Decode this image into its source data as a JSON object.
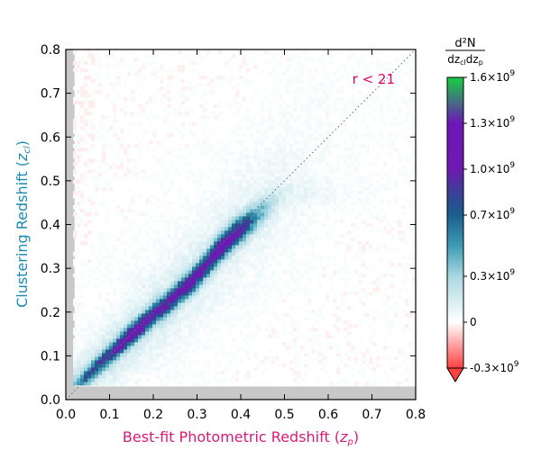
{
  "chart_data": {
    "type": "heatmap",
    "title": "",
    "annotation": "r < 21",
    "xlabel": "Best-fit Photometric Redshift (z_p)",
    "ylabel": "Clustering Redshift (z_cl)",
    "xlabel_parts": {
      "text": "Best-fit Photometric Redshift (",
      "sym": "z",
      "sub": "p",
      "close": ")"
    },
    "ylabel_parts": {
      "text": "Clustering Redshift (",
      "sym": "z",
      "sub": "cl",
      "close": ")"
    },
    "xlim": [
      0.0,
      0.8
    ],
    "ylim": [
      0.0,
      0.8
    ],
    "x_ticks": [
      "0.0",
      "0.1",
      "0.2",
      "0.3",
      "0.4",
      "0.5",
      "0.6",
      "0.7",
      "0.8"
    ],
    "y_ticks": [
      "0.0",
      "0.1",
      "0.2",
      "0.3",
      "0.4",
      "0.5",
      "0.6",
      "0.7",
      "0.8"
    ],
    "x_tick_values": [
      0.0,
      0.1,
      0.2,
      0.3,
      0.4,
      0.5,
      0.6,
      0.7,
      0.8
    ],
    "y_tick_values": [
      0.0,
      0.1,
      0.2,
      0.3,
      0.4,
      0.5,
      0.6,
      0.7,
      0.8
    ],
    "reference_line": {
      "style": "dotted",
      "x": [
        0.0,
        0.8
      ],
      "y": [
        0.0,
        0.8
      ]
    },
    "masked_region_color": "#c8c8c8",
    "masked_regions": [
      {
        "axis": "x",
        "from": 0.0,
        "to": 0.02
      },
      {
        "axis": "y",
        "from": 0.0,
        "to": 0.03
      }
    ],
    "ridge": {
      "x": [
        0.02,
        0.05,
        0.08,
        0.11,
        0.14,
        0.17,
        0.2,
        0.23,
        0.26,
        0.29,
        0.32,
        0.35,
        0.38,
        0.41,
        0.44,
        0.47,
        0.5
      ],
      "y": [
        0.03,
        0.055,
        0.085,
        0.11,
        0.14,
        0.165,
        0.195,
        0.215,
        0.245,
        0.27,
        0.305,
        0.34,
        0.37,
        0.395,
        0.42,
        0.445,
        0.47
      ],
      "peak_density": [
        0.3,
        0.55,
        0.7,
        0.8,
        0.97,
        1.02,
        0.92,
        0.88,
        0.94,
        0.96,
        0.95,
        1.06,
        1.08,
        0.8,
        0.4,
        0.18,
        0.08
      ],
      "unit": "1e9"
    },
    "colorbar": {
      "label": "d²N / dz_cl dz_p",
      "label_num": "d²N",
      "label_den_parts": [
        "dz",
        "cl",
        "dz",
        "p"
      ],
      "range": [
        -300000000.0,
        1600000000.0
      ],
      "extend": "min",
      "ticks": [
        -300000000.0,
        0.0,
        300000000.0,
        700000000.0,
        1000000000.0,
        1300000000.0,
        1600000000.0
      ],
      "tick_labels": [
        "-0.3×10",
        "0",
        "0.3×10",
        "0.7×10",
        "1.0×10",
        "1.3×10",
        "1.6×10"
      ],
      "tick_exponents": [
        "9",
        "",
        "9",
        "9",
        "9",
        "9",
        "9"
      ],
      "stops": [
        {
          "value": -300000000.0,
          "color": "#ff4040"
        },
        {
          "value": 0.0,
          "color": "#ffffff"
        },
        {
          "value": 300000000.0,
          "color": "#a9d7e2"
        },
        {
          "value": 500000000.0,
          "color": "#3d9cb4"
        },
        {
          "value": 700000000.0,
          "color": "#1a5e8e"
        },
        {
          "value": 850000000.0,
          "color": "#3b3f98"
        },
        {
          "value": 1000000000.0,
          "color": "#6e1ab2"
        },
        {
          "value": 1300000000.0,
          "color": "#6d16b8"
        },
        {
          "value": 1600000000.0,
          "color": "#16d043"
        }
      ]
    },
    "colors": {
      "annotation": "#e0006a",
      "xlabel": "#d81b78",
      "ylabel": "#1b8ab0",
      "reference_line": "#666666"
    }
  }
}
